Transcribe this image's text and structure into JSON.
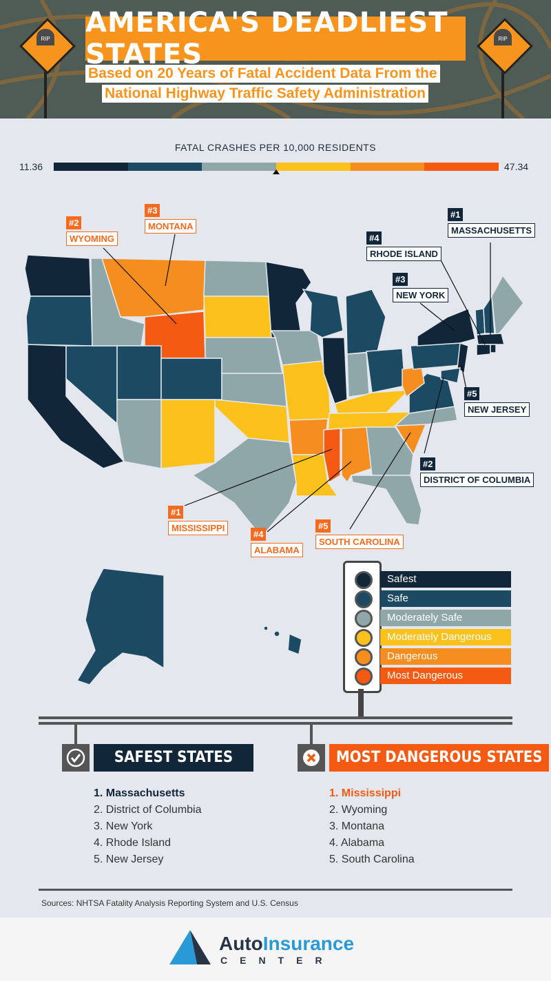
{
  "header": {
    "title": "AMERICA'S DEADLIEST STATES",
    "subtitle_line1": "Based on 20 Years of Fatal Accident Data From the",
    "subtitle_line2": "National Highway Traffic Safety Administration",
    "sign_text": "RIP"
  },
  "legend": {
    "title": "FATAL CRASHES PER 10,000 RESIDENTS",
    "min": "11.36",
    "max": "47.34",
    "colors": [
      "#12263a",
      "#1d4a63",
      "#8fa7a9",
      "#fcc21b",
      "#f68d1f",
      "#f45a12"
    ]
  },
  "callouts": {
    "wyoming": {
      "rank": "#2",
      "name": "WYOMING"
    },
    "montana": {
      "rank": "#3",
      "name": "MONTANA"
    },
    "massachusetts": {
      "rank": "#1",
      "name": "MASSACHUSETTS"
    },
    "rhode_island": {
      "rank": "#4",
      "name": "RHODE ISLAND"
    },
    "new_york": {
      "rank": "#3",
      "name": "NEW YORK"
    },
    "new_jersey": {
      "rank": "#5",
      "name": "NEW JERSEY"
    },
    "dc": {
      "rank": "#2",
      "name": "DISTRICT OF COLUMBIA"
    },
    "mississippi": {
      "rank": "#1",
      "name": "MISSISSIPPI"
    },
    "alabama": {
      "rank": "#4",
      "name": "ALABAMA"
    },
    "south_carolina": {
      "rank": "#5",
      "name": "SOUTH CAROLINA"
    }
  },
  "categories": [
    {
      "label": "Safest",
      "color": "#12263a"
    },
    {
      "label": "Safe",
      "color": "#1d4a63"
    },
    {
      "label": "Moderately Safe",
      "color": "#8fa7a9"
    },
    {
      "label": "Moderately Dangerous",
      "color": "#fcc21b"
    },
    {
      "label": "Dangerous",
      "color": "#f68d1f"
    },
    {
      "label": "Most Dangerous",
      "color": "#f45a12"
    }
  ],
  "safest": {
    "heading": "SAFEST STATES",
    "items": [
      "1. Massachusetts",
      "2. District of Columbia",
      "3. New York",
      "4. Rhode Island",
      "5. New Jersey"
    ]
  },
  "dangerous": {
    "heading": "MOST DANGEROUS STATES",
    "items": [
      "1. Mississippi",
      "2. Wyoming",
      "3. Montana",
      "4. Alabama",
      "5. South Carolina"
    ]
  },
  "sources": "Sources: NHTSA Fatality Analysis Reporting System and U.S. Census",
  "logo": {
    "auto": "Auto",
    "insurance": "Insurance",
    "center": "CENTER"
  }
}
